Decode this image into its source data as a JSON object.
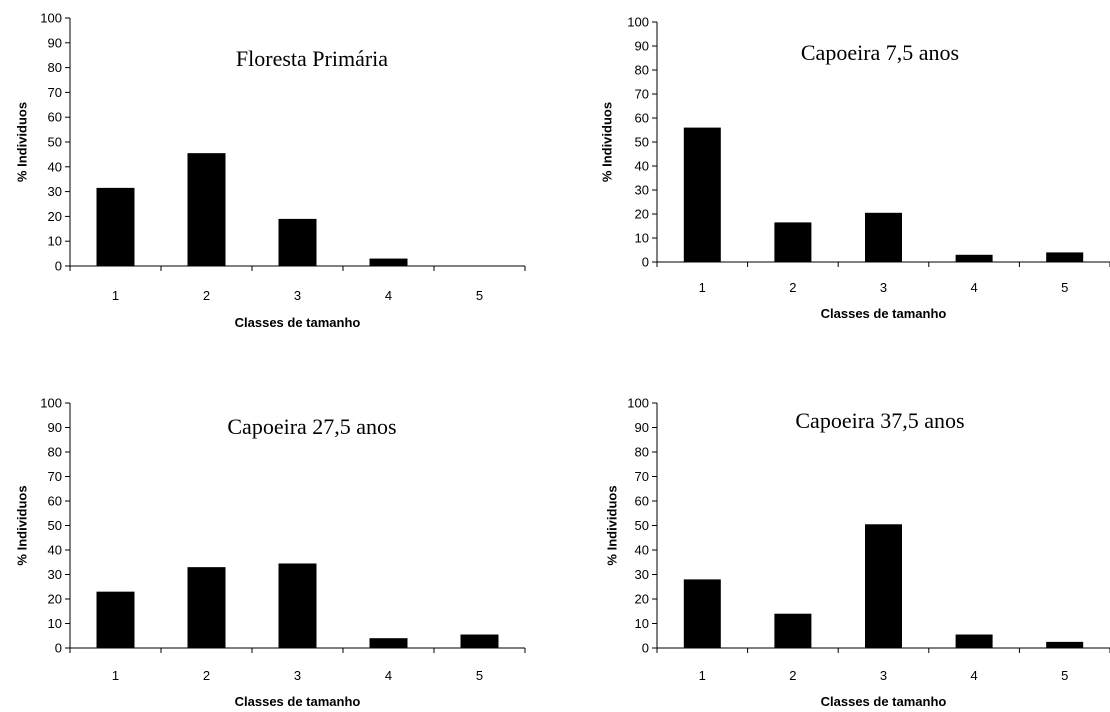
{
  "chart_data": [
    {
      "type": "bar",
      "title": "Floresta Primária",
      "xlabel": "Classes de tamanho",
      "ylabel": "% Individuos",
      "categories": [
        "1",
        "2",
        "3",
        "4",
        "5"
      ],
      "values": [
        31.5,
        45.5,
        19,
        3,
        0
      ],
      "ylim": [
        0,
        100
      ],
      "ytick_step": 10,
      "grid": false,
      "legend": "none"
    },
    {
      "type": "bar",
      "title": "Capoeira 7,5 anos",
      "xlabel": "Classes de tamanho",
      "ylabel": "% Individuos",
      "categories": [
        "1",
        "2",
        "3",
        "4",
        "5"
      ],
      "values": [
        56,
        16.5,
        20.5,
        3,
        4
      ],
      "ylim": [
        0,
        100
      ],
      "ytick_step": 10,
      "grid": false,
      "legend": "none"
    },
    {
      "type": "bar",
      "title": "Capoeira 27,5 anos",
      "xlabel": "Classes de tamanho",
      "ylabel": "% Individuos",
      "categories": [
        "1",
        "2",
        "3",
        "4",
        "5"
      ],
      "values": [
        23,
        33,
        34.5,
        4,
        5.5
      ],
      "ylim": [
        0,
        100
      ],
      "ytick_step": 10,
      "grid": false,
      "legend": "none"
    },
    {
      "type": "bar",
      "title": "Capoeira 37,5 anos",
      "xlabel": "Classes de tamanho",
      "ylabel": "% Individuos",
      "categories": [
        "1",
        "2",
        "3",
        "4",
        "5"
      ],
      "values": [
        28,
        14,
        50.5,
        5.5,
        2.5
      ],
      "ylim": [
        0,
        100
      ],
      "ytick_step": 10,
      "grid": false,
      "legend": "none"
    }
  ]
}
